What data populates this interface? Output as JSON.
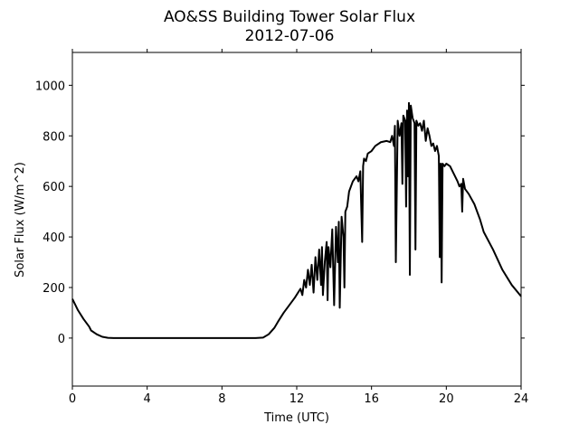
{
  "chart_data": {
    "type": "line",
    "title": "AO&SS Building Tower Solar Flux",
    "subtitle": "2012-07-06",
    "xlabel": "Time (UTC)",
    "ylabel": "Solar Flux (W/m^2)",
    "xlim": [
      0,
      24
    ],
    "ylim": [
      -190,
      1130
    ],
    "xticks": [
      0,
      4,
      8,
      12,
      16,
      20,
      24
    ],
    "yticks": [
      0,
      200,
      400,
      600,
      800,
      1000
    ],
    "grid": false,
    "legend": "none",
    "line_color": "#000000",
    "series": [
      {
        "x": [
          0,
          0.3,
          0.6,
          0.9,
          1.0,
          1.3,
          1.6,
          1.9,
          2.2,
          2.5,
          3.0,
          4,
          5,
          6,
          7,
          8,
          9,
          9.8,
          10.2,
          10.5,
          10.8,
          11.0,
          11.3,
          11.6,
          11.9,
          12.2,
          12.3,
          12.4,
          12.5,
          12.6,
          12.7,
          12.8,
          12.9,
          13.0,
          13.1,
          13.2,
          13.3,
          13.35,
          13.4,
          13.5,
          13.6,
          13.65,
          13.7,
          13.8,
          13.9,
          14.0,
          14.1,
          14.2,
          14.25,
          14.3,
          14.4,
          14.5,
          14.55,
          14.6,
          14.7,
          14.8,
          14.9,
          15.0,
          15.1,
          15.2,
          15.3,
          15.4,
          15.5,
          15.55,
          15.6,
          15.7,
          15.8,
          16.0,
          16.2,
          16.5,
          16.8,
          17.0,
          17.1,
          17.2,
          17.25,
          17.3,
          17.4,
          17.5,
          17.6,
          17.65,
          17.7,
          17.8,
          17.85,
          17.9,
          17.95,
          18.0,
          18.05,
          18.1,
          18.2,
          18.3,
          18.35,
          18.4,
          18.5,
          18.6,
          18.7,
          18.8,
          18.9,
          19.0,
          19.1,
          19.2,
          19.3,
          19.4,
          19.5,
          19.6,
          19.65,
          19.7,
          19.75,
          19.8,
          19.9,
          20.0,
          20.2,
          20.4,
          20.6,
          20.7,
          20.8,
          20.85,
          20.9,
          21.0,
          21.2,
          21.5,
          21.8,
          22.0,
          22.5,
          23.0,
          23.5,
          24.0
        ],
        "y": [
          155,
          110,
          75,
          45,
          30,
          15,
          5,
          1,
          0,
          0,
          0,
          0,
          0,
          0,
          0,
          0,
          0,
          0,
          2,
          15,
          40,
          65,
          100,
          130,
          160,
          195,
          170,
          230,
          200,
          270,
          210,
          290,
          180,
          320,
          230,
          350,
          210,
          360,
          170,
          300,
          380,
          150,
          360,
          280,
          430,
          130,
          440,
          300,
          460,
          120,
          480,
          400,
          200,
          500,
          520,
          580,
          600,
          620,
          630,
          640,
          620,
          660,
          380,
          680,
          710,
          700,
          730,
          740,
          760,
          775,
          780,
          775,
          800,
          760,
          840,
          300,
          860,
          800,
          850,
          610,
          880,
          860,
          520,
          900,
          640,
          930,
          250,
          920,
          870,
          850,
          350,
          860,
          840,
          850,
          820,
          860,
          780,
          830,
          800,
          760,
          770,
          740,
          760,
          720,
          320,
          690,
          220,
          690,
          680,
          690,
          680,
          650,
          620,
          600,
          610,
          500,
          630,
          590,
          570,
          530,
          470,
          420,
          350,
          270,
          210,
          165
        ]
      }
    ]
  }
}
